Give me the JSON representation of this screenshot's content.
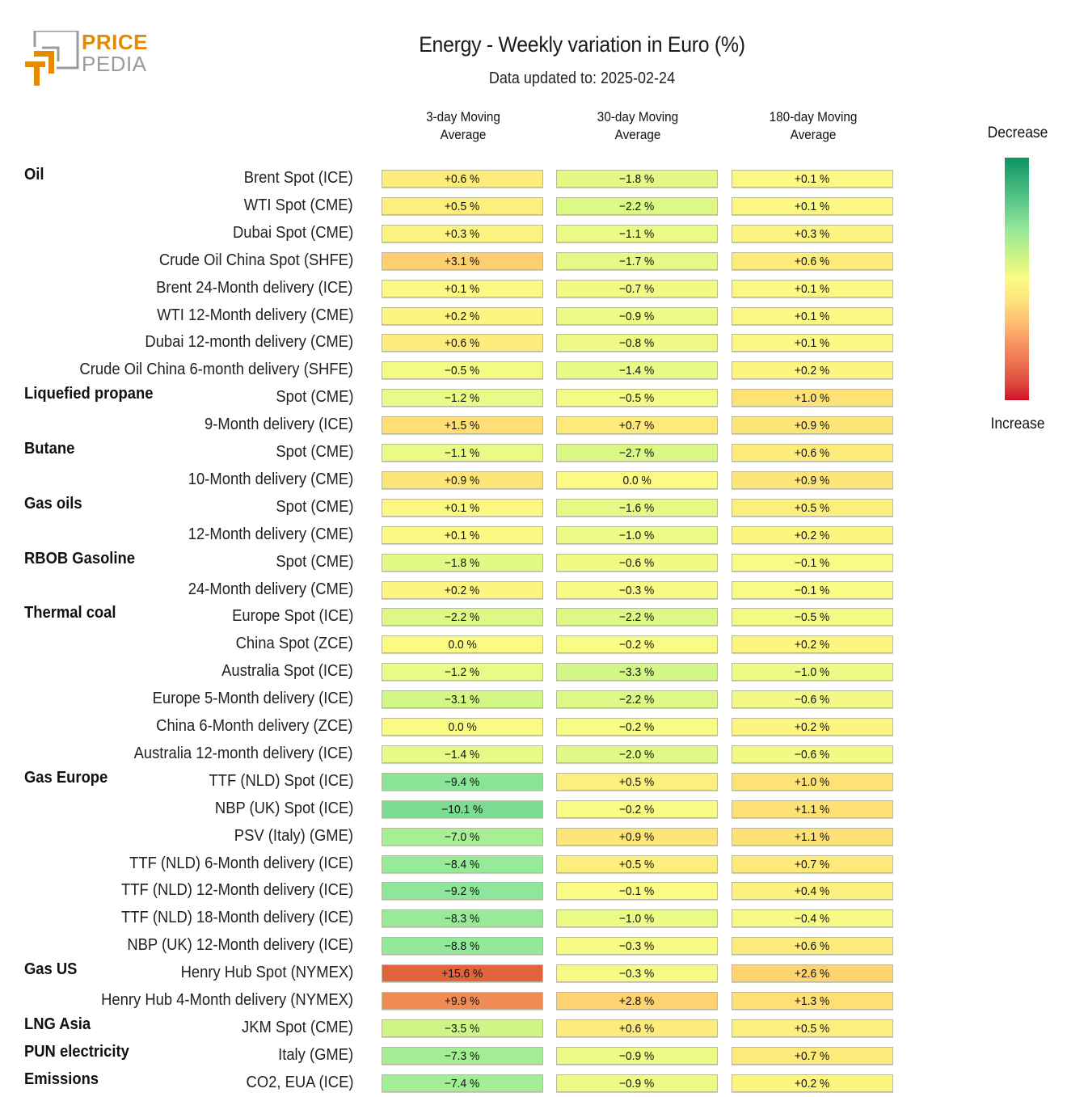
{
  "logo": {
    "line1": "PRICE",
    "line2": "PEDIA",
    "brand_color": "#E68A00",
    "gray_color": "#9B9B9B"
  },
  "header": {
    "title": "Energy - Weekly variation in Euro (%)",
    "subtitle": "Data updated to: 2025-02-24"
  },
  "legend": {
    "top_label": "Decrease",
    "bottom_label": "Increase"
  },
  "chart_data": {
    "type": "heatmap",
    "title": "Energy - Weekly variation in Euro (%)",
    "subtitle": "Data updated to: 2025-02-24",
    "columns": [
      "3-day Moving Average",
      "30-day Moving Average",
      "180-day Moving Average"
    ],
    "column_lines": [
      [
        "3-day Moving",
        "Average"
      ],
      [
        "30-day Moving",
        "Average"
      ],
      [
        "180-day Moving",
        "Average"
      ]
    ],
    "unit": "%",
    "colorscale": {
      "low_label": "Decrease",
      "high_label": "Increase",
      "low_color": "#0D9463",
      "mid_color": "#FBFB84",
      "high_color": "#D21129"
    },
    "rows": [
      {
        "group": "Oil",
        "label": "Brent Spot (ICE)",
        "values": [
          0.6,
          -1.8,
          0.1
        ]
      },
      {
        "group": "",
        "label": "WTI Spot (CME)",
        "values": [
          0.5,
          -2.2,
          0.1
        ]
      },
      {
        "group": "",
        "label": "Dubai Spot (CME)",
        "values": [
          0.3,
          -1.1,
          0.3
        ]
      },
      {
        "group": "",
        "label": "Crude Oil China Spot (SHFE)",
        "values": [
          3.1,
          -1.7,
          0.6
        ]
      },
      {
        "group": "",
        "label": "Brent 24-Month delivery (ICE)",
        "values": [
          0.1,
          -0.7,
          0.1
        ]
      },
      {
        "group": "",
        "label": "WTI 12-Month delivery (CME)",
        "values": [
          0.2,
          -0.9,
          0.1
        ]
      },
      {
        "group": "",
        "label": "Dubai 12-month delivery (CME)",
        "values": [
          0.6,
          -0.8,
          0.1
        ]
      },
      {
        "group": "",
        "label": "Crude Oil China 6-month delivery (SHFE)",
        "values": [
          -0.5,
          -1.4,
          0.2
        ]
      },
      {
        "group": "Liquefied propane",
        "label": "Spot (CME)",
        "values": [
          -1.2,
          -0.5,
          1.0
        ]
      },
      {
        "group": "",
        "label": "9-Month delivery (ICE)",
        "values": [
          1.5,
          0.7,
          0.9
        ]
      },
      {
        "group": "Butane",
        "label": "Spot (CME)",
        "values": [
          -1.1,
          -2.7,
          0.6
        ]
      },
      {
        "group": "",
        "label": "10-Month delivery (CME)",
        "values": [
          0.9,
          0.0,
          0.9
        ]
      },
      {
        "group": "Gas oils",
        "label": "Spot (CME)",
        "values": [
          0.1,
          -1.6,
          0.5
        ]
      },
      {
        "group": "",
        "label": "12-Month delivery (CME)",
        "values": [
          0.1,
          -1.0,
          0.2
        ]
      },
      {
        "group": "RBOB Gasoline",
        "label": "Spot (CME)",
        "values": [
          -1.8,
          -0.6,
          -0.1
        ]
      },
      {
        "group": "",
        "label": "24-Month delivery (CME)",
        "values": [
          0.2,
          -0.3,
          -0.1
        ]
      },
      {
        "group": "Thermal coal",
        "label": "Europe Spot (ICE)",
        "values": [
          -2.2,
          -2.2,
          -0.5
        ]
      },
      {
        "group": "",
        "label": "China Spot (ZCE)",
        "values": [
          0.0,
          -0.2,
          0.2
        ]
      },
      {
        "group": "",
        "label": "Australia Spot (ICE)",
        "values": [
          -1.2,
          -3.3,
          -1.0
        ]
      },
      {
        "group": "",
        "label": "Europe 5-Month delivery (ICE)",
        "values": [
          -3.1,
          -2.2,
          -0.6
        ]
      },
      {
        "group": "",
        "label": "China 6-Month delivery (ZCE)",
        "values": [
          0.0,
          -0.2,
          0.2
        ]
      },
      {
        "group": "",
        "label": "Australia 12-month delivery (ICE)",
        "values": [
          -1.4,
          -2.0,
          -0.6
        ]
      },
      {
        "group": "Gas Europe",
        "label": "TTF (NLD) Spot (ICE)",
        "values": [
          -9.4,
          0.5,
          1.0
        ]
      },
      {
        "group": "",
        "label": "NBP (UK) Spot (ICE)",
        "values": [
          -10.1,
          -0.2,
          1.1
        ]
      },
      {
        "group": "",
        "label": "PSV (Italy) (GME)",
        "values": [
          -7.0,
          0.9,
          1.1
        ]
      },
      {
        "group": "",
        "label": "TTF (NLD) 6-Month delivery (ICE)",
        "values": [
          -8.4,
          0.5,
          0.7
        ]
      },
      {
        "group": "",
        "label": "TTF (NLD) 12-Month delivery (ICE)",
        "values": [
          -9.2,
          -0.1,
          0.4
        ]
      },
      {
        "group": "",
        "label": "TTF (NLD) 18-Month delivery (ICE)",
        "values": [
          -8.3,
          -1.0,
          -0.4
        ]
      },
      {
        "group": "",
        "label": "NBP (UK) 12-Month delivery (ICE)",
        "values": [
          -8.8,
          -0.3,
          0.6
        ]
      },
      {
        "group": "Gas US",
        "label": "Henry Hub Spot (NYMEX)",
        "values": [
          15.6,
          -0.3,
          2.6
        ]
      },
      {
        "group": "",
        "label": "Henry Hub 4-Month delivery (NYMEX)",
        "values": [
          9.9,
          2.8,
          1.3
        ]
      },
      {
        "group": "LNG Asia",
        "label": "JKM Spot (CME)",
        "values": [
          -3.5,
          0.6,
          0.5
        ]
      },
      {
        "group": "PUN electricity",
        "label": "Italy (GME)",
        "values": [
          -7.3,
          -0.9,
          0.7
        ]
      },
      {
        "group": "Emissions",
        "label": "CO2, EUA (ICE)",
        "values": [
          -7.4,
          -0.9,
          0.2
        ]
      }
    ]
  }
}
